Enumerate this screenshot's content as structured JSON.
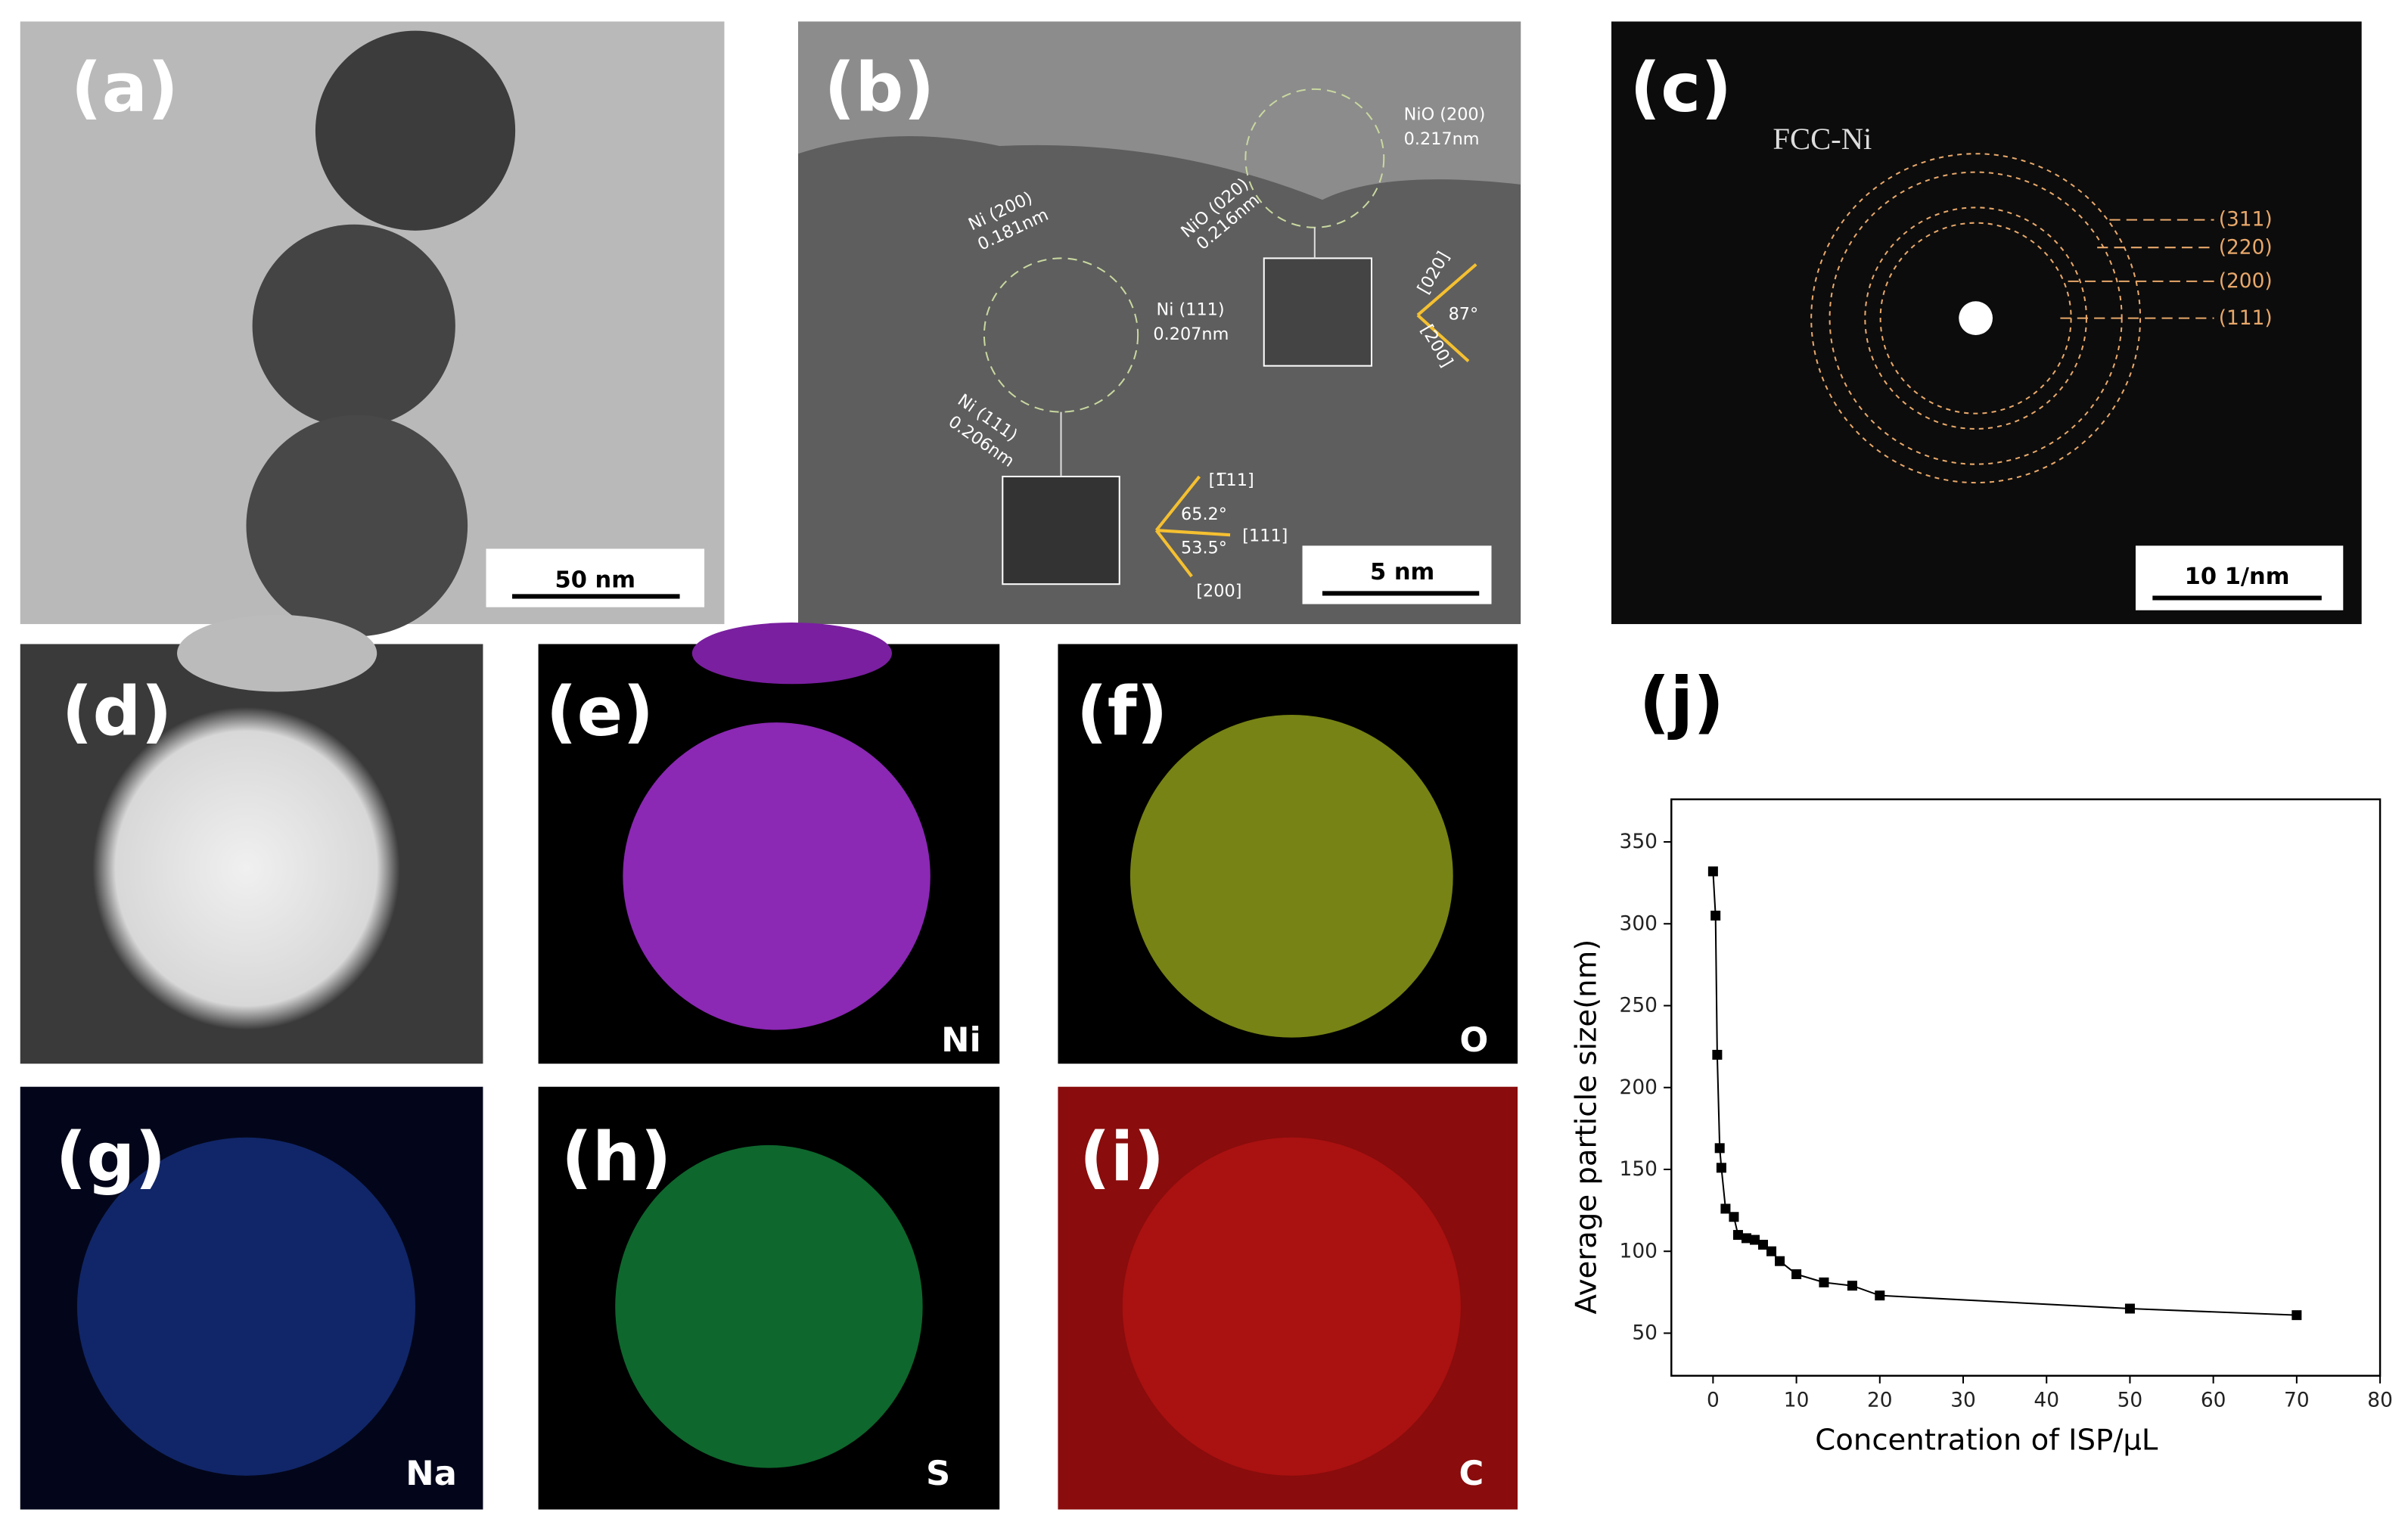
{
  "panels": [
    {
      "label": "(a)",
      "scale_bar": "50 nm"
    },
    {
      "label": "(b)",
      "scale_bar": "5 nm",
      "annotations": [
        "NiO (200)",
        "0.217nm",
        "Ni (200)",
        "0.181nm",
        "NiO (020)",
        "0.216nm",
        "Ni (111)",
        "0.207nm",
        "Ni (111)",
        "0.206nm",
        "[020]",
        "87°",
        "[200]",
        "[1̅11]",
        "65.2°",
        "[111]",
        "53.5°",
        "[200]"
      ]
    },
    {
      "label": "(c)",
      "scale_bar": "10 1/nm",
      "title": "FCC-Ni",
      "rings": [
        "(311)",
        "(220)",
        "(200)",
        "(111)"
      ]
    },
    {
      "label": "(d)"
    },
    {
      "label": "(e)",
      "element": "Ni"
    },
    {
      "label": "(f)",
      "element": "O"
    },
    {
      "label": "(g)",
      "element": "Na"
    },
    {
      "label": "(h)",
      "element": "S"
    },
    {
      "label": "(i)",
      "element": "C"
    }
  ],
  "chart_data": {
    "label": "(j)",
    "type": "line",
    "x_label": "Concentration of ISP/μL",
    "y_label": "Average particle size(nm)",
    "x": [
      0,
      0.3,
      0.5,
      0.8,
      1,
      1.5,
      2.5,
      3,
      4,
      5,
      6,
      7,
      8,
      10,
      13.3,
      16.7,
      20,
      50,
      70
    ],
    "values": [
      332,
      305,
      220,
      163,
      151,
      126,
      121,
      110,
      108,
      107,
      104,
      100,
      94,
      86,
      81,
      79,
      73,
      65,
      61
    ],
    "color": "#000000",
    "xlim": [
      -5,
      80
    ],
    "xticks": [
      0,
      10,
      20,
      30,
      40,
      50,
      60,
      70,
      80
    ],
    "ylim": [
      24,
      376
    ],
    "yticks": [
      50,
      100,
      150,
      200,
      250,
      300,
      350
    ]
  }
}
